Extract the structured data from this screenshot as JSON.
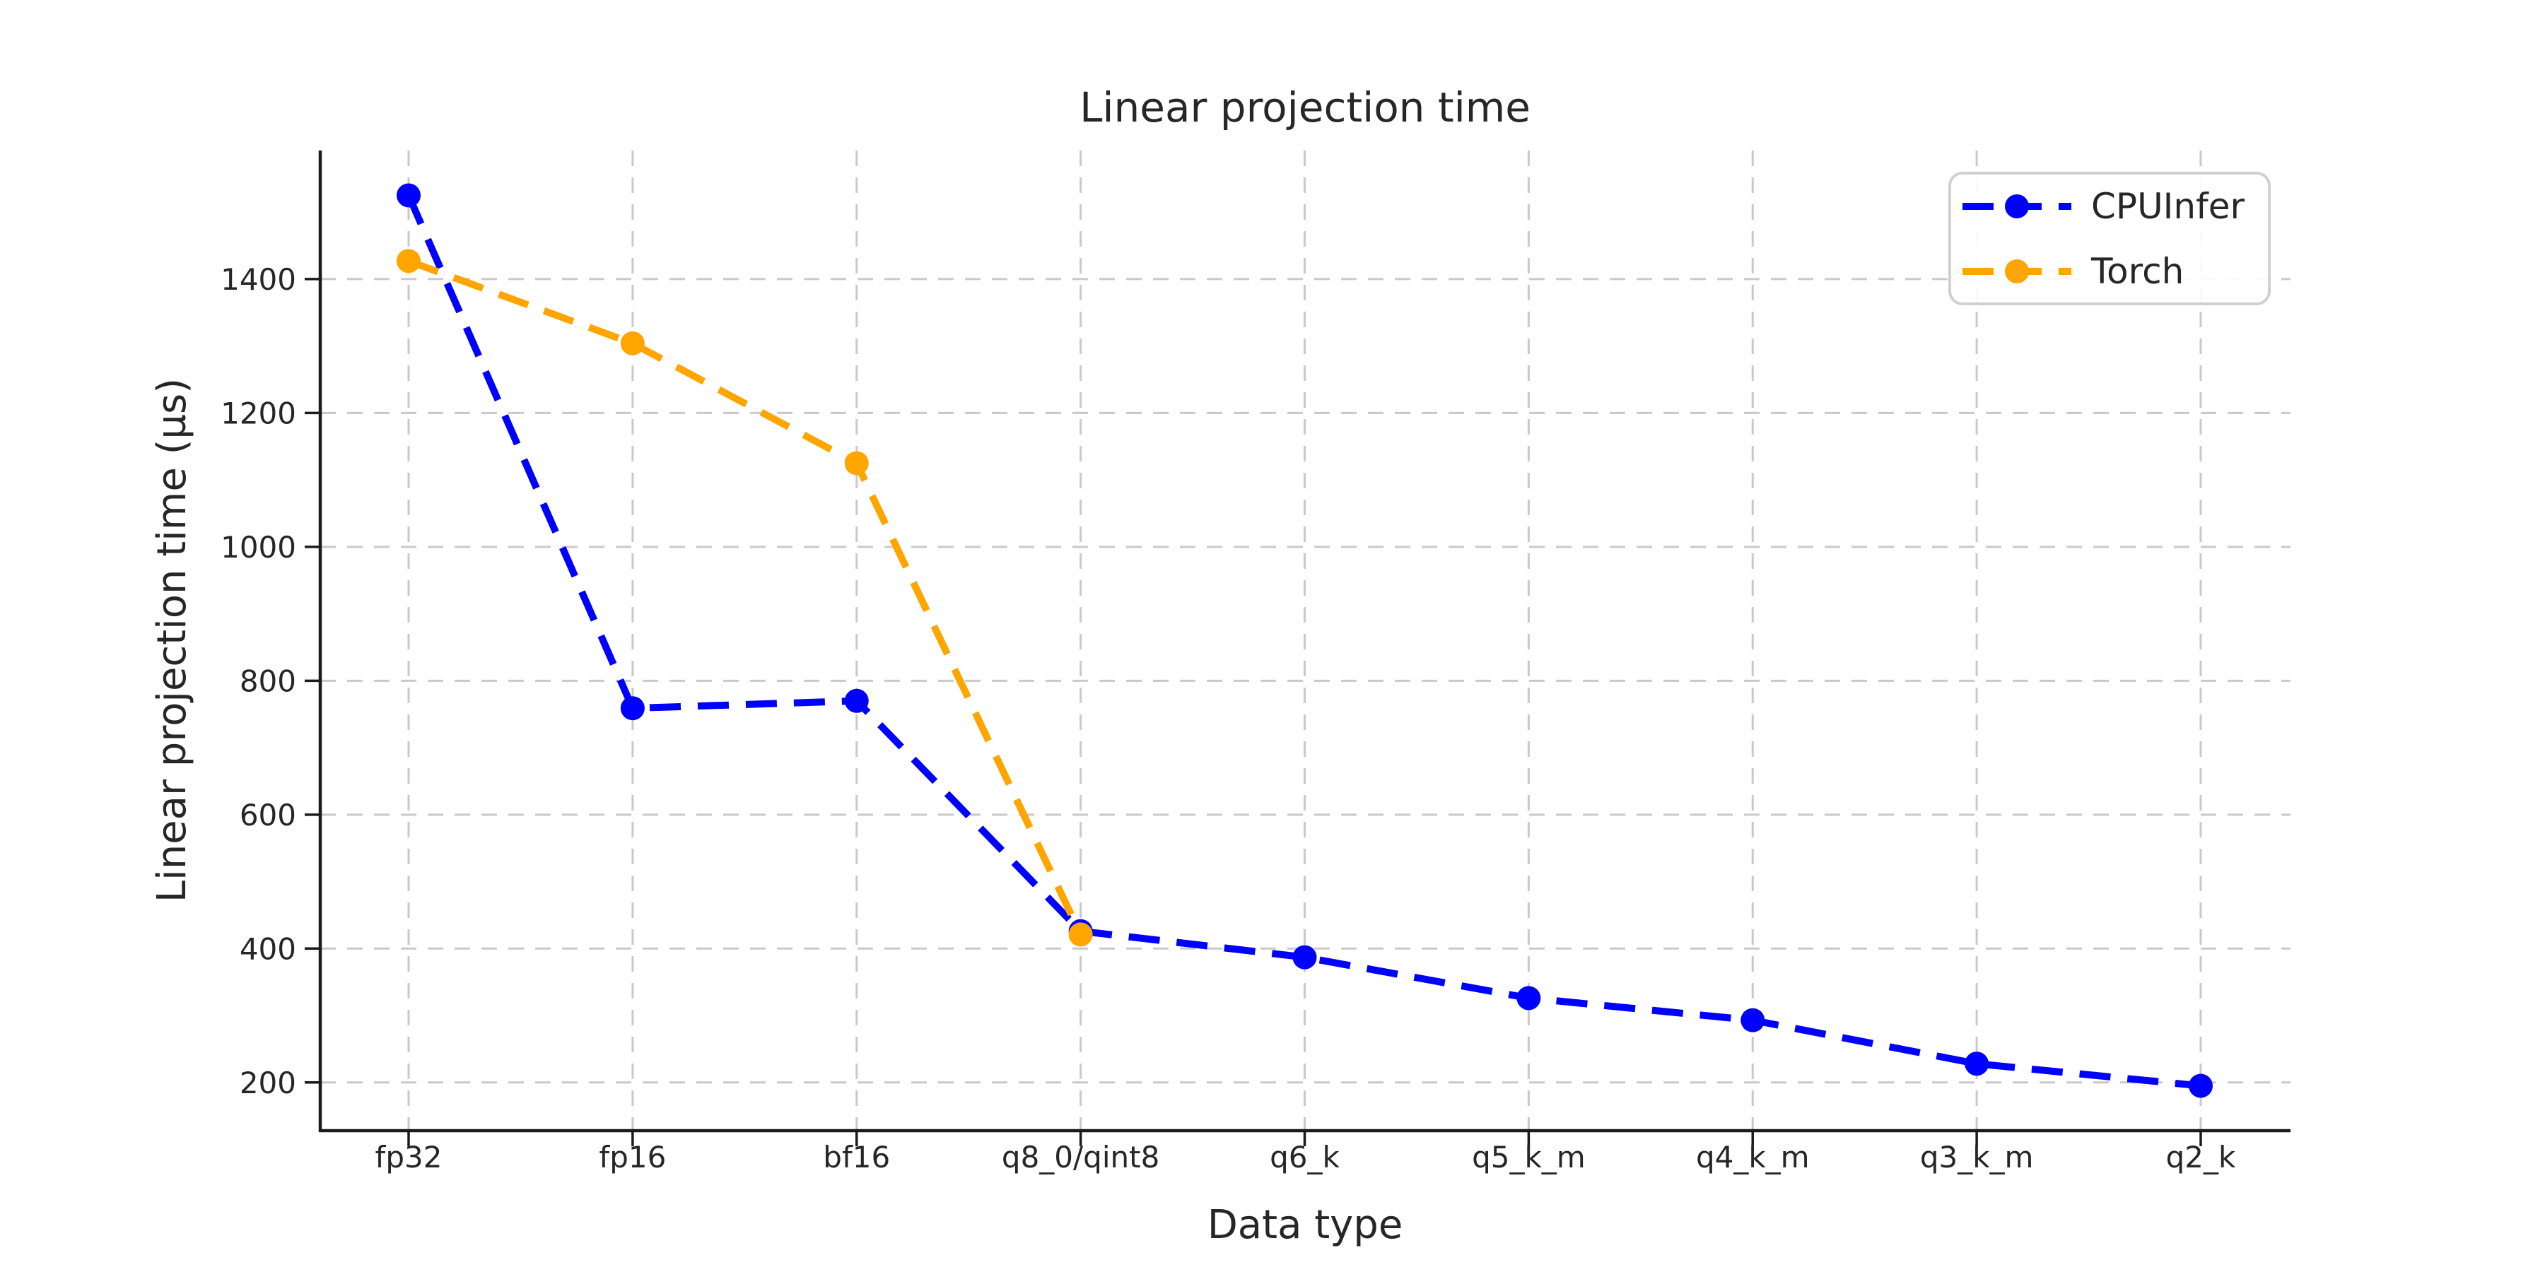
{
  "chart_data": {
    "type": "line",
    "title": "Linear projection time",
    "xlabel": "Data type",
    "ylabel": "Linear projection time (µs)",
    "categories": [
      "fp32",
      "fp16",
      "bf16",
      "q8_0/qint8",
      "q6_k",
      "q5_k_m",
      "q4_k_m",
      "q3_k_m",
      "q2_k"
    ],
    "series": [
      {
        "name": "CPUInfer",
        "color": "#0000ff",
        "values": [
          1525,
          759,
          770,
          426,
          387,
          326,
          293,
          228,
          195
        ]
      },
      {
        "name": "Torch",
        "color": "#ffa500",
        "values": [
          1427,
          1304,
          1125,
          421,
          null,
          null,
          null,
          null,
          null
        ]
      }
    ],
    "yticks": [
      200,
      400,
      600,
      800,
      1000,
      1200,
      1400
    ],
    "ylim": [
      128,
      1592
    ],
    "grid": true,
    "line_style": "dashed",
    "marker": "circle",
    "legend_position": "upper right"
  }
}
